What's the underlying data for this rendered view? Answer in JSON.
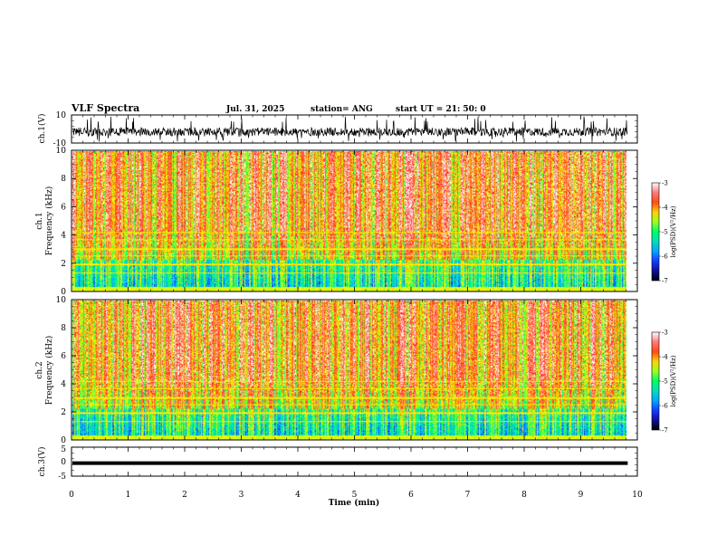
{
  "header": {
    "title": "VLF Spectra",
    "date": "Jul. 31, 2025",
    "station": "station= ANG",
    "start": "start  UT =   21: 50: 0"
  },
  "chart_data": [
    {
      "id": "ch1-waveform",
      "type": "line",
      "ylabel": "ch.1(V)",
      "ylim": [
        -10,
        10
      ],
      "yticks": [
        "10",
        "-10"
      ],
      "xlim": [
        0,
        9.83
      ]
    },
    {
      "id": "ch1-spectrogram",
      "type": "heatmap",
      "ylabel": "ch.1\nFrequency (kHz)",
      "ylim": [
        0,
        10
      ],
      "yticks": [
        "0",
        "2",
        "4",
        "6",
        "8",
        "10"
      ],
      "xlim": [
        0,
        9.83
      ],
      "colorbar": {
        "label": "log(PSD)(V²/Hz)",
        "range": [
          -7,
          -3
        ],
        "ticks": [
          "-3",
          "-4",
          "-5",
          "-6",
          "-7"
        ]
      }
    },
    {
      "id": "ch2-spectrogram",
      "type": "heatmap",
      "ylabel": "ch.2\nFrequency (kHz)",
      "ylim": [
        0,
        10
      ],
      "yticks": [
        "0",
        "2",
        "4",
        "6",
        "8",
        "10"
      ],
      "xlim": [
        0,
        9.83
      ],
      "colorbar": {
        "label": "log(PSD)(V²/Hz)",
        "range": [
          -7,
          -3
        ],
        "ticks": [
          "-3",
          "-4",
          "-5",
          "-6",
          "-7"
        ]
      }
    },
    {
      "id": "ch3-waveform",
      "type": "line",
      "ylabel": "ch.3(V)",
      "ylim": [
        -5,
        5
      ],
      "yticks": [
        "5",
        "0",
        "-5"
      ],
      "constant_value": -0.5,
      "xlim": [
        0,
        9.83
      ]
    }
  ],
  "xaxis": {
    "label": "Time (min)",
    "range": [
      0,
      10
    ],
    "ticks": [
      "0",
      "1",
      "2",
      "3",
      "4",
      "5",
      "6",
      "7",
      "8",
      "9",
      "10"
    ]
  },
  "colorscale": [
    "#000000",
    "#1a1aff",
    "#00c8ff",
    "#00ff60",
    "#ffff00",
    "#ff2020",
    "#ffffff"
  ]
}
